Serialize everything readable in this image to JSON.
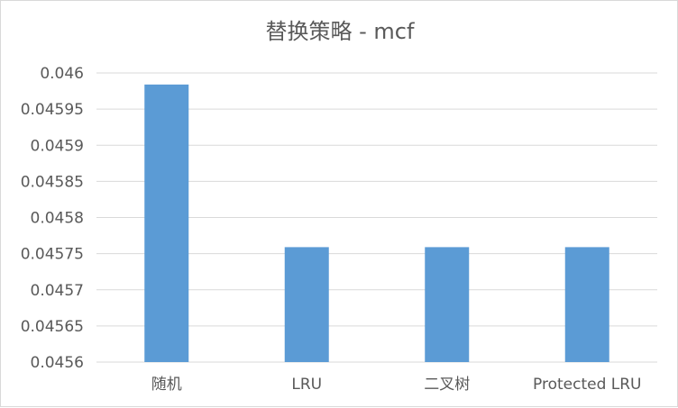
{
  "chart_data": {
    "type": "bar",
    "title": "替换策略 - mcf",
    "categories": [
      "随机",
      "LRU",
      "二叉树",
      "Protected LRU"
    ],
    "series": [
      {
        "values": [
          0.045984,
          0.045759,
          0.045759,
          0.045759
        ]
      }
    ],
    "ylim": [
      0.0456,
      0.046
    ],
    "yticks": [
      "0.0456",
      "0.04565",
      "0.0457",
      "0.04575",
      "0.0458",
      "0.04585",
      "0.0459",
      "0.04595",
      "0.046"
    ],
    "grid": true,
    "bar_color": "#5b9bd5",
    "gridline_color": "#d9d9d9",
    "text_color": "#595959"
  }
}
